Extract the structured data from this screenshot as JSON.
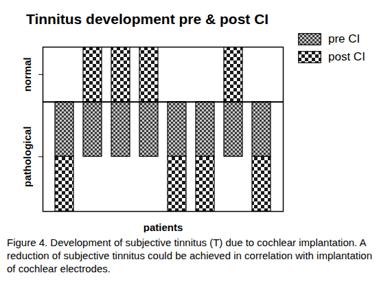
{
  "chart_data": {
    "type": "bar",
    "title": "Tinnitus development pre & post CI",
    "caption": "Figure 4. Development of subjective tinnitus (T) due to cochlear implantation. A reduction of subjective tinnitus could be achieved in correlation with implantation of cochlear electrodes.",
    "x_label": "patients",
    "categories": [
      null,
      null,
      null,
      null,
      null,
      null,
      null,
      null
    ],
    "series": [
      {
        "name": "pre CI",
        "color": "#3a3a3a",
        "values": [
          -1,
          -1,
          -1,
          -1,
          -1,
          -1,
          -1,
          -1
        ]
      },
      {
        "name": "post CI",
        "color": "#1a1a1a",
        "values": [
          -1,
          1,
          1,
          1,
          -1,
          -1,
          1,
          -1
        ]
      }
    ],
    "stacked": true,
    "ylim": [
      -2,
      1
    ],
    "yticks": [
      {
        "value": 0.5,
        "label": "normal"
      },
      {
        "value": -1,
        "label": "pathological"
      }
    ],
    "tick_labels": "y",
    "legend": "top-right",
    "grid": false
  }
}
